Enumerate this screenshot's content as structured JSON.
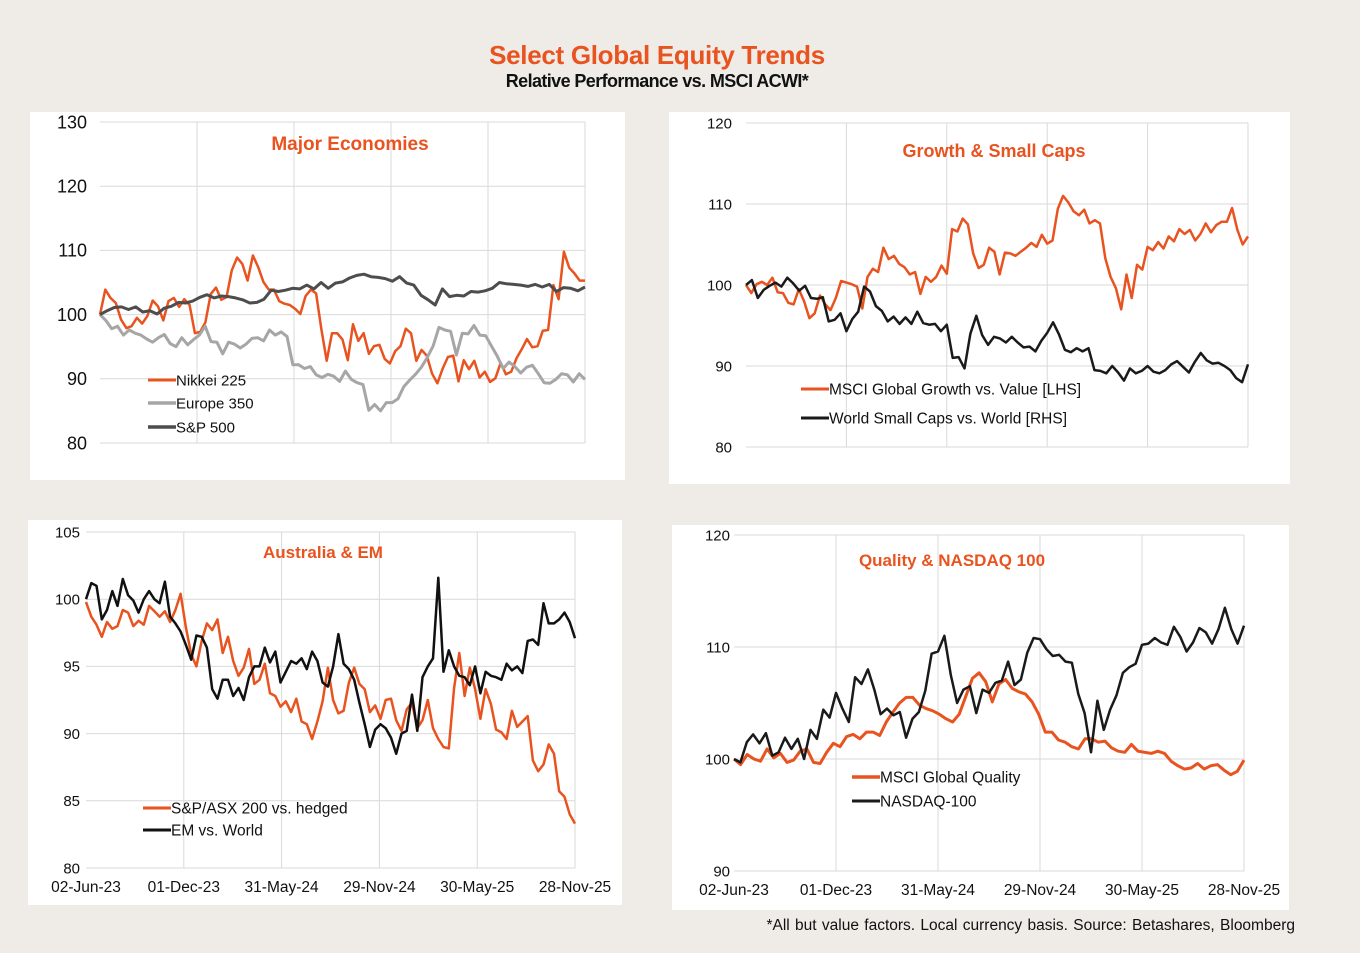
{
  "title": "Select Global Equity Trends",
  "subtitle": "Relative Performance vs. MSCI ACWI*",
  "footnote": "*All but value  factors.  Local currency  basis.  Source:  Betashares, Bloomberg",
  "colors": {
    "orange": "#e8531f",
    "light_gray": "#a6a6a6",
    "dark_gray": "#4d4d4d",
    "black": "#111111",
    "title_orange": "#e8531f",
    "background": "#efece8",
    "gridline": "#d9d9d9"
  },
  "chart_data": [
    {
      "id": "major-economies",
      "type": "line",
      "title": "Major Economies",
      "xlabel": "",
      "ylabel": "",
      "x_start": "02-Jun-23",
      "x_end": "28-Nov-25",
      "x_ticks": [],
      "ylim": [
        80,
        130
      ],
      "y_ticks": [
        80,
        90,
        100,
        110,
        120,
        130
      ],
      "grid": true,
      "legend_position": "bottom-left",
      "series": [
        {
          "name": "Nikkei 225",
          "color": "#e8531f",
          "width": 2.5,
          "values": [
            100,
            103.9,
            102.6,
            101.8,
            99.2,
            97.9,
            98.2,
            99.5,
            98.6,
            99.8,
            102.2,
            101.3,
            99.1,
            102.1,
            102.6,
            101.2,
            102.4,
            101.5,
            97.1,
            97.3,
            98.8,
            103.2,
            104.2,
            102.3,
            102.7,
            106.9,
            108.9,
            107.9,
            105.3,
            109.2,
            107.4,
            105.1,
            103.9,
            103.9,
            102.1,
            101.7,
            101.5,
            100.9,
            100.1,
            102.9,
            103.9,
            103.3,
            97.7,
            92.8,
            97.1,
            97.1,
            96.1,
            92.9,
            98.5,
            95.9,
            97.1,
            93.9,
            95.1,
            95.3,
            93.1,
            92.4,
            94.3,
            95.1,
            97.8,
            97.1,
            92.8,
            94.5,
            93.6,
            90.8,
            89.3,
            91.6,
            93.4,
            93.6,
            89.6,
            92.9,
            91.5,
            92.8,
            90.2,
            91.1,
            89.5,
            90.1,
            92.5,
            90.7,
            91.1,
            93.2,
            94.6,
            96.2,
            94.9,
            95.1,
            97.5,
            97.6,
            104.6,
            102.4,
            109.8,
            107.3,
            106.4,
            105.3,
            105.3
          ]
        },
        {
          "name": "Europe 350",
          "color": "#a6a6a6",
          "width": 3,
          "values": [
            100,
            99.1,
            97.8,
            98.2,
            96.8,
            97.6,
            97.1,
            96.8,
            96.2,
            95.7,
            96.4,
            96.9,
            95.5,
            95.0,
            96.4,
            95.3,
            96.1,
            96.8,
            98.2,
            95.8,
            95.7,
            93.9,
            95.7,
            95.4,
            94.8,
            95.4,
            96.3,
            96.4,
            95.9,
            97.6,
            96.8,
            97.3,
            96.6,
            92.2,
            92.2,
            91.6,
            91.9,
            90.6,
            90.2,
            90.7,
            90.4,
            89.6,
            91.2,
            89.9,
            89.4,
            89.1,
            85.1,
            86.0,
            85.0,
            86.3,
            86.3,
            86.9,
            88.8,
            89.8,
            90.7,
            91.8,
            93.3,
            95.1,
            98.0,
            97.6,
            97.4,
            93.7,
            97.1,
            97.0,
            98.3,
            96.8,
            96.7,
            95.1,
            93.5,
            91.6,
            92.6,
            91.9,
            90.9,
            91.8,
            92.1,
            90.8,
            89.4,
            89.3,
            89.9,
            90.8,
            90.6,
            89.5,
            90.8,
            89.9
          ]
        },
        {
          "name": "S&P 500",
          "color": "#4d4d4d",
          "width": 3,
          "values": [
            100,
            100.6,
            101.1,
            101.2,
            100.8,
            101.2,
            100.4,
            100.6,
            100.1,
            101.0,
            101.3,
            101.9,
            101.8,
            102.1,
            102.7,
            103.1,
            102.6,
            102.9,
            102.8,
            102.6,
            102.3,
            101.8,
            101.9,
            102.4,
            103.8,
            103.6,
            103.8,
            104.1,
            104.0,
            104.6,
            104.0,
            105.0,
            104.1,
            104.9,
            105.1,
            105.7,
            106.1,
            106.3,
            105.9,
            105.8,
            105.6,
            105.2,
            105.9,
            104.9,
            104.6,
            103.0,
            102.3,
            101.5,
            104.0,
            102.8,
            103.0,
            102.9,
            103.6,
            103.5,
            103.7,
            104.1,
            105.0,
            104.8,
            104.7,
            104.6,
            104.4,
            104.7,
            104.3,
            104.7,
            103.6,
            104.2,
            104.1,
            103.7,
            104.3
          ]
        }
      ]
    },
    {
      "id": "growth-small-caps",
      "type": "line",
      "title": "Growth & Small Caps",
      "xlabel": "",
      "ylabel": "",
      "x_start": "02-Jun-23",
      "x_end": "28-Nov-25",
      "x_ticks": [],
      "ylim": [
        80,
        120
      ],
      "y_ticks": [
        80,
        90,
        100,
        110,
        120
      ],
      "grid": true,
      "legend_position": "bottom-left",
      "series": [
        {
          "name": "MSCI Global Growth vs. Value [LHS]",
          "color": "#e8531f",
          "width": 2.5,
          "values": [
            100,
            99.0,
            100.1,
            100.4,
            100.0,
            100.9,
            99.1,
            99.0,
            97.8,
            97.6,
            99.5,
            98.0,
            95.9,
            96.5,
            98.7,
            97.6,
            96.9,
            98.4,
            100.5,
            100.3,
            100.1,
            99.8,
            97.1,
            101.0,
            102.0,
            101.6,
            104.6,
            103.2,
            103.6,
            102.6,
            102.2,
            101.3,
            101.6,
            98.9,
            101.0,
            100.4,
            101.0,
            102.4,
            101.4,
            106.9,
            106.6,
            108.2,
            107.5,
            103.9,
            102.1,
            102.5,
            104.6,
            104.1,
            101.3,
            104.0,
            103.9,
            103.6,
            104.1,
            104.6,
            105.2,
            104.7,
            106.2,
            105.1,
            105.5,
            109.4,
            111.0,
            110.2,
            109.1,
            108.6,
            109.3,
            107.6,
            108.0,
            107.6,
            103.3,
            101.0,
            99.6,
            97.0,
            101.3,
            98.4,
            102.5,
            101.9,
            104.7,
            104.3,
            105.3,
            104.5,
            106.0,
            105.4,
            106.9,
            106.3,
            106.8,
            105.5,
            106.3,
            107.6,
            106.5,
            107.4,
            107.8,
            107.8,
            109.5,
            106.8,
            105.0,
            106.0
          ]
        },
        {
          "name": "World Small Caps vs. World [RHS]",
          "color": "#1a1a1a",
          "width": 2.5,
          "values": [
            100,
            100.6,
            98.4,
            99.4,
            99.9,
            100.3,
            99.8,
            100.9,
            100.2,
            99.3,
            99.9,
            98.4,
            98.3,
            98.5,
            95.5,
            95.7,
            96.5,
            94.3,
            95.8,
            96.7,
            99.8,
            99.2,
            97.4,
            96.8,
            95.5,
            96.1,
            95.2,
            96.0,
            95.2,
            96.7,
            95.3,
            95.1,
            95.2,
            94.3,
            95.1,
            91.0,
            91.1,
            89.7,
            94.0,
            96.2,
            93.8,
            92.6,
            93.6,
            93.4,
            92.9,
            93.6,
            92.9,
            92.3,
            92.4,
            91.8,
            93.1,
            94.1,
            95.4,
            93.9,
            92.0,
            91.7,
            92.2,
            91.8,
            92.2,
            89.5,
            89.4,
            89.1,
            90.0,
            89.2,
            88.2,
            89.7,
            89.1,
            89.4,
            90.0,
            89.3,
            89.1,
            89.5,
            90.2,
            90.6,
            89.9,
            89.2,
            90.5,
            91.6,
            90.7,
            90.3,
            90.4,
            90.0,
            89.5,
            88.5,
            88.0,
            90.2
          ]
        }
      ]
    },
    {
      "id": "australia-em",
      "type": "line",
      "title": "Australia & EM",
      "xlabel": "",
      "ylabel": "",
      "x_start": "02-Jun-23",
      "x_end": "28-Nov-25",
      "x_ticks": [
        "02-Jun-23",
        "01-Dec-23",
        "31-May-24",
        "29-Nov-24",
        "30-May-25",
        "28-Nov-25"
      ],
      "ylim": [
        80,
        105
      ],
      "y_ticks": [
        80,
        85,
        90,
        95,
        100,
        105
      ],
      "grid": true,
      "legend_position": "bottom-left",
      "series": [
        {
          "name": "S&P/ASX 200 vs. hedged",
          "color": "#e8531f",
          "width": 2.5,
          "values": [
            99.8,
            98.7,
            98.1,
            97.2,
            98.3,
            97.8,
            98.0,
            99.2,
            99.0,
            98.0,
            98.4,
            98.1,
            99.5,
            99.1,
            98.7,
            99.1,
            98.3,
            99.2,
            100.4,
            97.9,
            95.9,
            95.0,
            96.9,
            98.2,
            97.7,
            98.5,
            96.0,
            97.2,
            95.4,
            94.3,
            94.9,
            96.3,
            93.7,
            94.0,
            95.2,
            93.0,
            92.8,
            92.0,
            92.4,
            91.6,
            92.6,
            90.9,
            90.7,
            89.6,
            90.9,
            92.4,
            94.9,
            92.5,
            91.5,
            91.7,
            93.8,
            94.9,
            93.7,
            93.3,
            91.6,
            92.1,
            91.1,
            92.5,
            92.6,
            91.0,
            90.2,
            91.8,
            92.3,
            90.4,
            91.0,
            92.5,
            90.4,
            89.6,
            89.0,
            88.9,
            93.4,
            96.0,
            92.8,
            94.9,
            93.3,
            91.1,
            93.3,
            92.2,
            90.3,
            90.1,
            89.6,
            91.7,
            90.5,
            90.9,
            91.3,
            88.0,
            87.2,
            87.7,
            89.2,
            88.5,
            85.7,
            85.3,
            84.0,
            83.3
          ]
        },
        {
          "name": "EM vs. World",
          "color": "#111111",
          "width": 2.5,
          "values": [
            100,
            101.2,
            101.0,
            98.5,
            99.2,
            100.6,
            99.5,
            101.5,
            100.3,
            99.9,
            99.0,
            100.0,
            100.6,
            100.0,
            99.7,
            101.3,
            98.7,
            98.2,
            97.6,
            96.6,
            95.5,
            97.3,
            97.2,
            96.4,
            93.3,
            92.6,
            94.0,
            94.0,
            92.8,
            93.4,
            92.5,
            94.2,
            95.0,
            95.0,
            96.4,
            95.3,
            96.1,
            93.8,
            94.6,
            95.4,
            95.2,
            95.6,
            94.8,
            96.1,
            95.4,
            93.8,
            93.5,
            95.0,
            97.4,
            95.2,
            94.8,
            94.0,
            92.3,
            90.7,
            89.0,
            90.3,
            90.7,
            90.4,
            89.7,
            88.5,
            90.0,
            90.2,
            92.9,
            90.2,
            94.2,
            95.0,
            95.6,
            101.6,
            94.6,
            96.2,
            95.0,
            94.3,
            94.2,
            93.6,
            95.0,
            93.0,
            94.6,
            94.3,
            94.2,
            94.0,
            95.2,
            94.7,
            95.0,
            94.5,
            96.9,
            97.0,
            96.6,
            99.7,
            98.2,
            98.2,
            98.5,
            99.0,
            98.3,
            97.1
          ]
        }
      ]
    },
    {
      "id": "quality-nasdaq",
      "type": "line",
      "title": "Quality & NASDAQ 100",
      "xlabel": "",
      "ylabel": "",
      "x_start": "02-Jun-23",
      "x_end": "28-Nov-25",
      "x_ticks": [
        "02-Jun-23",
        "01-Dec-23",
        "31-May-24",
        "29-Nov-24",
        "30-May-25",
        "28-Nov-25"
      ],
      "ylim": [
        90,
        120
      ],
      "y_ticks": [
        90,
        100,
        110,
        120
      ],
      "grid": true,
      "legend_position": "bottom-left",
      "series": [
        {
          "name": "MSCI Global Quality",
          "color": "#e8531f",
          "width": 3,
          "values": [
            100,
            99.5,
            100.4,
            100.0,
            99.8,
            100.9,
            100.1,
            100.5,
            99.7,
            99.9,
            100.7,
            100.9,
            99.7,
            99.6,
            100.6,
            101.4,
            101.1,
            102.0,
            102.2,
            101.8,
            102.4,
            102.4,
            102.1,
            103.3,
            104.2,
            105.0,
            105.5,
            105.5,
            104.8,
            104.5,
            104.3,
            104.0,
            103.6,
            103.3,
            104.0,
            105.6,
            107.2,
            107.7,
            106.9,
            105.1,
            106.7,
            107.1,
            106.3,
            106.0,
            105.8,
            105.1,
            104.0,
            102.4,
            102.4,
            101.7,
            101.5,
            101.1,
            100.9,
            101.8,
            101.8,
            101.5,
            101.6,
            101.0,
            100.7,
            100.6,
            101.3,
            100.7,
            100.6,
            100.5,
            100.7,
            100.5,
            99.8,
            99.4,
            99.1,
            99.2,
            99.6,
            99.1,
            99.4,
            99.5,
            99.0,
            98.6,
            98.9,
            99.9
          ]
        },
        {
          "name": "NASDAQ-100",
          "color": "#1a1a1a",
          "width": 2.5,
          "values": [
            100,
            99.7,
            101.5,
            102.2,
            101.4,
            102.3,
            100.3,
            100.6,
            101.9,
            100.9,
            101.8,
            100.0,
            102.6,
            101.8,
            104.4,
            103.7,
            105.9,
            104.5,
            103.3,
            107.3,
            106.7,
            108.0,
            106.2,
            104.0,
            104.5,
            103.9,
            104.2,
            101.9,
            103.6,
            104.2,
            106.1,
            109.4,
            109.6,
            111.0,
            107.5,
            105.0,
            106.2,
            106.5,
            104.1,
            106.2,
            105.9,
            106.8,
            107.0,
            108.7,
            106.6,
            107.1,
            109.5,
            110.8,
            110.7,
            109.8,
            109.2,
            109.3,
            108.7,
            108.6,
            105.8,
            104.1,
            100.6,
            105.2,
            102.6,
            104.4,
            105.7,
            107.7,
            108.2,
            108.5,
            110.2,
            110.3,
            110.8,
            110.4,
            110.2,
            111.8,
            110.9,
            109.6,
            110.4,
            111.7,
            111.3,
            110.3,
            111.6,
            113.5,
            111.6,
            110.3,
            111.9
          ]
        }
      ]
    }
  ]
}
